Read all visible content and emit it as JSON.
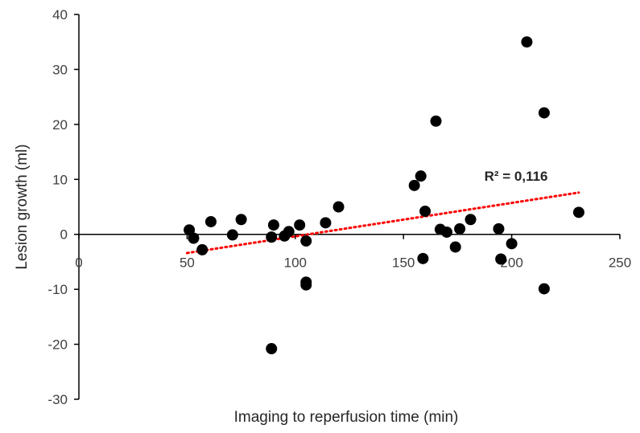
{
  "chart_data": {
    "type": "scatter",
    "title": "",
    "xlabel": "Imaging to reperfusion time (min)",
    "ylabel": "Lesion growth (ml)",
    "xlim": [
      0,
      250
    ],
    "ylim": [
      -30,
      40
    ],
    "x_ticks": [
      0,
      50,
      100,
      150,
      200,
      250
    ],
    "y_ticks": [
      -30,
      -20,
      -10,
      0,
      10,
      20,
      30,
      40
    ],
    "x_tick_labels": [
      "0",
      "50",
      "100",
      "150",
      "200",
      "250"
    ],
    "y_tick_labels": [
      "-30",
      "-20",
      "-10",
      "0",
      "10",
      "20",
      "30",
      "40"
    ],
    "grid": false,
    "legend": "none",
    "point_color": "#000000",
    "points": [
      {
        "x": 51,
        "y": 0.8
      },
      {
        "x": 53,
        "y": -0.7
      },
      {
        "x": 57,
        "y": -2.8
      },
      {
        "x": 61,
        "y": 2.3
      },
      {
        "x": 71,
        "y": -0.1
      },
      {
        "x": 75,
        "y": 2.7
      },
      {
        "x": 89,
        "y": -0.5
      },
      {
        "x": 90,
        "y": 1.7
      },
      {
        "x": 89,
        "y": -20.8
      },
      {
        "x": 95,
        "y": -0.3
      },
      {
        "x": 97,
        "y": 0.5
      },
      {
        "x": 102,
        "y": 1.7
      },
      {
        "x": 105,
        "y": -1.2
      },
      {
        "x": 105,
        "y": -8.7
      },
      {
        "x": 105,
        "y": -9.2
      },
      {
        "x": 114,
        "y": 2.1
      },
      {
        "x": 120,
        "y": 5.0
      },
      {
        "x": 155,
        "y": 8.9
      },
      {
        "x": 158,
        "y": 10.6
      },
      {
        "x": 159,
        "y": -4.4
      },
      {
        "x": 160,
        "y": 4.2
      },
      {
        "x": 165,
        "y": 20.6
      },
      {
        "x": 167,
        "y": 0.9
      },
      {
        "x": 170,
        "y": 0.4
      },
      {
        "x": 174,
        "y": -2.3
      },
      {
        "x": 176,
        "y": 1.0
      },
      {
        "x": 181,
        "y": 2.7
      },
      {
        "x": 194,
        "y": 1.0
      },
      {
        "x": 195,
        "y": -4.5
      },
      {
        "x": 200,
        "y": -1.7
      },
      {
        "x": 207,
        "y": 35.0
      },
      {
        "x": 215,
        "y": 22.1
      },
      {
        "x": 215,
        "y": -9.9
      },
      {
        "x": 231,
        "y": 4.0
      }
    ],
    "trendline": {
      "type": "linear",
      "x_start": 50,
      "x_end": 231,
      "y_start": -3.4,
      "y_end": 7.6,
      "color": "#ff0000",
      "style": "dotted"
    },
    "annotations": [
      {
        "text": "R² = 0,116",
        "x": 200,
        "y": 10.6
      }
    ]
  }
}
